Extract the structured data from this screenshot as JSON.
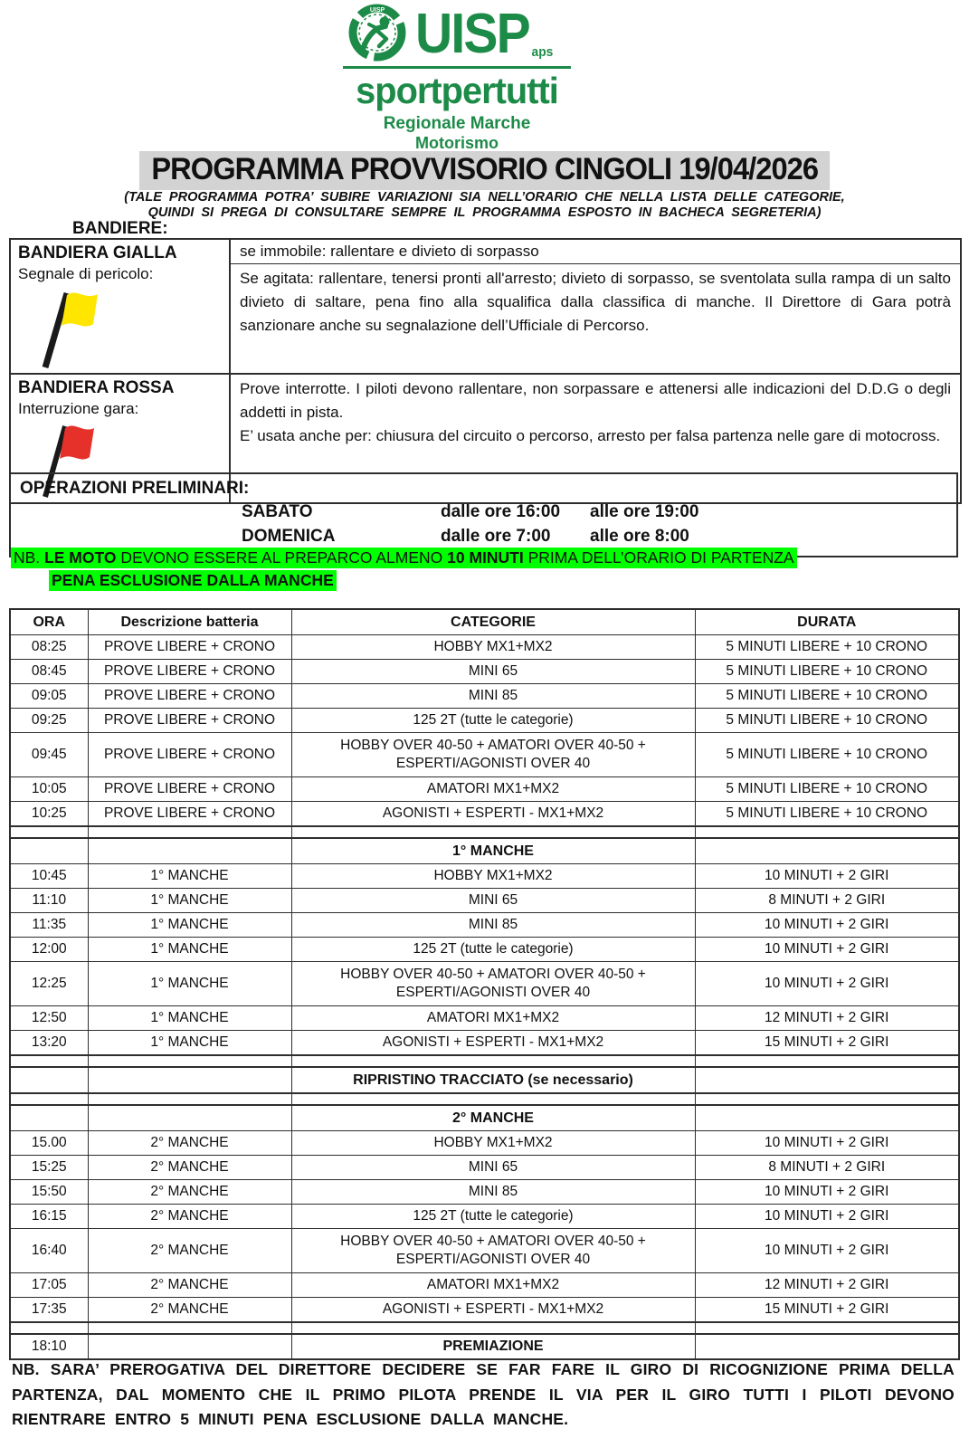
{
  "logo": {
    "org": "UISP",
    "org_suffix": "aps",
    "tagline": "sportpertutti",
    "region": "Regionale Marche",
    "department": "Motorismo",
    "green": "#1d8b48"
  },
  "title": "PROGRAMMA PROVVISORIO CINGOLI 19/04/2026",
  "subtitle_line1": "(TALE PROGRAMMA POTRA’ SUBIRE VARIAZIONI SIA NELL’ORARIO CHE NELLA  LISTA DELLE CATEGORIE,",
  "subtitle_line2": "QUINDI SI PREGA DI CONSULTARE SEMPRE IL PROGRAMMA ESPOSTO IN BACHECA SEGRETERIA)",
  "flags": {
    "section_label": "BANDIERE:",
    "yellow": {
      "name": "BANDIERA GIALLA",
      "role": "Segnale di pericolo:",
      "color": "#ffe600",
      "rule_still": "se immobile: rallentare e divieto di sorpasso",
      "rule_waved": "Se agitata: rallentare, tenersi pronti all'arresto; divieto di sorpasso, se sventolata sulla rampa di un salto divieto di saltare, pena fino  alla squalifica dalla classifica di manche. Il Direttore di Gara potrà sanzionare anche su segnalazione dell’Ufficiale di Percorso."
    },
    "red": {
      "name": "BANDIERA ROSSA",
      "role": "Interruzione gara:",
      "color": "#e6312b",
      "rule1": "Prove interrotte. I piloti devono rallentare, non sorpassare e attenersi alle indicazioni del D.D.G o degli addetti in pista.",
      "rule2": "E’ usata anche per: chiusura del circuito o percorso, arresto per falsa partenza nelle gare di motocross."
    }
  },
  "preliminary": {
    "heading": "OPERAZIONI  PRELIMINARI:",
    "rows": [
      {
        "day": "SABATO",
        "from": "dalle ore 16:00",
        "to": "alle ore 19:00"
      },
      {
        "day": "DOMENICA",
        "from": "dalle ore  7:00",
        "to": "alle ore   8:00"
      }
    ]
  },
  "nb": {
    "line1_prefix": "NB. ",
    "line1_bold1": "LE MOTO",
    "line1_mid": " DEVONO ESSERE AL PREPARCO ALMENO ",
    "line1_bold2": "10 MINUTI",
    "line1_suffix": " PRIMA DELL’ORARIO DI PARTENZA",
    "line2": "PENA ESCLUSIONE DALLA MANCHE",
    "highlight_color": "#00ff00"
  },
  "schedule": {
    "headers": [
      "ORA",
      "Descrizione batteria",
      "CATEGORIE",
      "DURATA"
    ],
    "rows": [
      {
        "t": "row",
        "ora": "08:25",
        "desc": "PROVE LIBERE + CRONO",
        "cat": "HOBBY MX1+MX2",
        "dur": "5 MINUTI LIBERE + 10 CRONO"
      },
      {
        "t": "row",
        "ora": "08:45",
        "desc": "PROVE LIBERE + CRONO",
        "cat": "MINI 65",
        "dur": "5 MINUTI LIBERE + 10 CRONO"
      },
      {
        "t": "row",
        "ora": "09:05",
        "desc": "PROVE LIBERE + CRONO",
        "cat": "MINI 85",
        "dur": "5 MINUTI LIBERE + 10 CRONO"
      },
      {
        "t": "row",
        "ora": "09:25",
        "desc": "PROVE LIBERE + CRONO",
        "cat": "125 2T (tutte le categorie)",
        "dur": "5 MINUTI LIBERE + 10 CRONO"
      },
      {
        "t": "row",
        "tall": true,
        "ora": "09:45",
        "desc": "PROVE LIBERE + CRONO",
        "cat": "HOBBY OVER 40-50 + AMATORI OVER 40-50 + ESPERTI/AGONISTI OVER 40",
        "dur": "5 MINUTI LIBERE + 10 CRONO"
      },
      {
        "t": "row",
        "ora": "10:05",
        "desc": "PROVE LIBERE + CRONO",
        "cat": "AMATORI MX1+MX2",
        "dur": "5 MINUTI LIBERE + 10 CRONO"
      },
      {
        "t": "row",
        "ora": "10:25",
        "desc": "PROVE LIBERE + CRONO",
        "cat": "AGONISTI + ESPERTI - MX1+MX2",
        "dur": "5 MINUTI LIBERE + 10 CRONO"
      },
      {
        "t": "spacer"
      },
      {
        "t": "section",
        "label": "1° MANCHE"
      },
      {
        "t": "row",
        "ora": "10:45",
        "desc": "1° MANCHE",
        "cat": "HOBBY MX1+MX2",
        "dur": "10 MINUTI + 2 GIRI"
      },
      {
        "t": "row",
        "ora": "11:10",
        "desc": "1° MANCHE",
        "cat": "MINI 65",
        "dur": "8 MINUTI + 2 GIRI"
      },
      {
        "t": "row",
        "ora": "11:35",
        "desc": "1° MANCHE",
        "cat": "MINI 85",
        "dur": "10 MINUTI + 2 GIRI"
      },
      {
        "t": "row",
        "ora": "12:00",
        "desc": "1° MANCHE",
        "cat": "125 2T (tutte le categorie)",
        "dur": "10 MINUTI + 2 GIRI"
      },
      {
        "t": "row",
        "tall": true,
        "ora": "12:25",
        "desc": "1° MANCHE",
        "cat": "HOBBY OVER 40-50 + AMATORI OVER 40-50 + ESPERTI/AGONISTI OVER 40",
        "dur": "10 MINUTI + 2 GIRI"
      },
      {
        "t": "row",
        "ora": "12:50",
        "desc": "1° MANCHE",
        "cat": "AMATORI MX1+MX2",
        "dur": "12 MINUTI + 2 GIRI"
      },
      {
        "t": "row",
        "ora": "13:20",
        "desc": "1° MANCHE",
        "cat": "AGONISTI + ESPERTI - MX1+MX2",
        "dur": "15 MINUTI + 2 GIRI"
      },
      {
        "t": "spacer"
      },
      {
        "t": "section",
        "label": "RIPRISTINO TRACCIATO (se necessario)"
      },
      {
        "t": "spacer"
      },
      {
        "t": "section",
        "label": "2° MANCHE"
      },
      {
        "t": "row",
        "ora": "15.00",
        "desc": "2° MANCHE",
        "cat": "HOBBY MX1+MX2",
        "dur": "10 MINUTI + 2 GIRI"
      },
      {
        "t": "row",
        "ora": "15:25",
        "desc": "2° MANCHE",
        "cat": "MINI 65",
        "dur": "8 MINUTI + 2 GIRI"
      },
      {
        "t": "row",
        "ora": "15:50",
        "desc": "2° MANCHE",
        "cat": "MINI 85",
        "dur": "10 MINUTI + 2 GIRI"
      },
      {
        "t": "row",
        "ora": "16:15",
        "desc": "2° MANCHE",
        "cat": "125 2T (tutte le categorie)",
        "dur": "10 MINUTI + 2 GIRI"
      },
      {
        "t": "row",
        "tall": true,
        "ora": "16:40",
        "desc": "2° MANCHE",
        "cat": "HOBBY OVER 40-50 + AMATORI OVER 40-50 + ESPERTI/AGONISTI OVER 40",
        "dur": "10 MINUTI + 2 GIRI"
      },
      {
        "t": "row",
        "ora": "17:05",
        "desc": "2° MANCHE",
        "cat": "AMATORI MX1+MX2",
        "dur": "12 MINUTI + 2 GIRI"
      },
      {
        "t": "row",
        "ora": "17:35",
        "desc": "2° MANCHE",
        "cat": "AGONISTI + ESPERTI - MX1+MX2",
        "dur": "15 MINUTI + 2 GIRI"
      },
      {
        "t": "spacer"
      },
      {
        "t": "row",
        "bold_cat": true,
        "ora": "18:10",
        "desc": "",
        "cat": "PREMIAZIONE",
        "dur": ""
      }
    ]
  },
  "footer_note": "NB. SARA’ PREROGATIVA DEL DIRETTORE DECIDERE SE FAR FARE IL GIRO DI RICOGNIZIONE   PRIMA DELLA PARTENZA, DAL MOMENTO CHE IL PRIMO PILOTA PRENDE IL VIA PER IL GIRO TUTTI I PILOTI DEVONO  RIENTRARE ENTRO 5 MINUTI PENA ESCLUSIONE DALLA MANCHE."
}
